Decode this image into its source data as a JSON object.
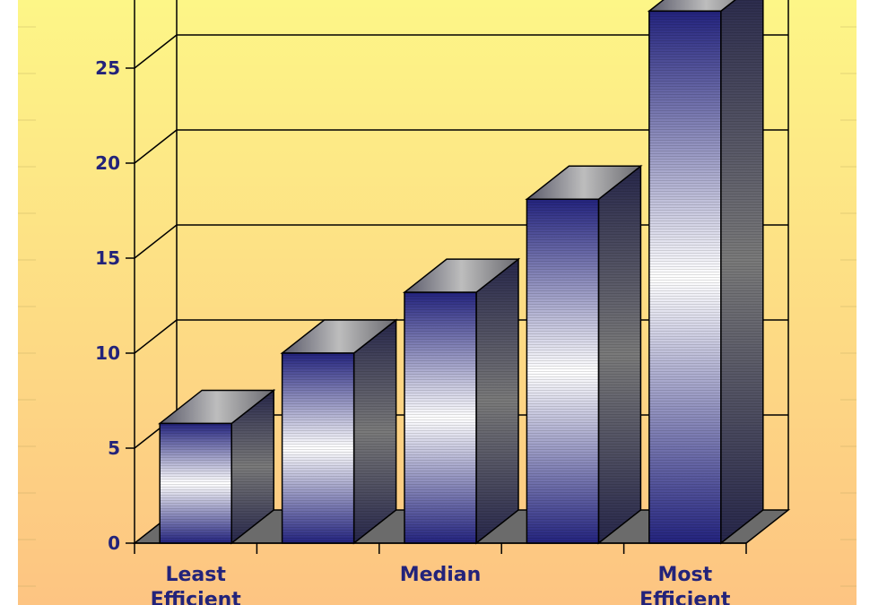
{
  "chart_data": {
    "type": "bar",
    "style": "3d",
    "title": "",
    "xlabel": "",
    "ylabel": "",
    "categories": [
      "Least Efficient",
      "",
      "Median",
      "",
      "Most Efficient"
    ],
    "category_label_lines": [
      [
        "Least",
        "Efficient"
      ],
      [],
      [
        "Median"
      ],
      [],
      [
        "Most",
        "Efficient"
      ]
    ],
    "values": [
      6.3,
      10.0,
      13.2,
      18.1,
      28.0
    ],
    "ylim": [
      0,
      28
    ],
    "yticks": [
      0,
      5,
      10,
      15,
      20,
      25
    ],
    "grid": true,
    "legend": "none",
    "colors": {
      "background_top": "#fdf687",
      "background_bottom": "#fdc482",
      "bar_dark": "#23237e",
      "bar_light": "#ffffff",
      "floor": "#6b6b6b",
      "axis_text": "#23237a"
    }
  }
}
